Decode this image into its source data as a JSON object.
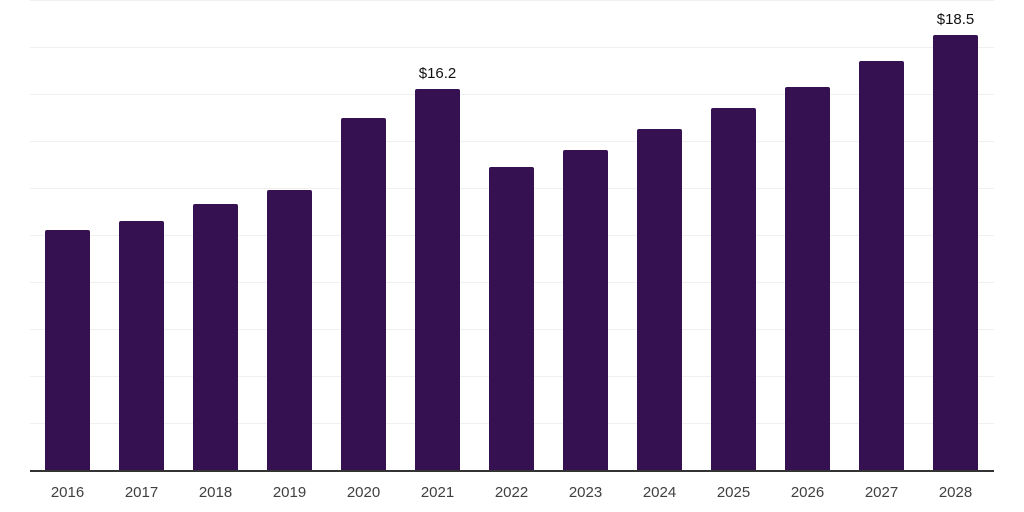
{
  "chart_data": {
    "type": "bar",
    "title": "",
    "xlabel": "",
    "ylabel": "",
    "categories": [
      "2016",
      "2017",
      "2018",
      "2019",
      "2020",
      "2021",
      "2022",
      "2023",
      "2024",
      "2025",
      "2026",
      "2027",
      "2028"
    ],
    "values": [
      10.2,
      10.6,
      11.3,
      11.9,
      15.0,
      16.2,
      12.9,
      13.6,
      14.5,
      15.4,
      16.3,
      17.4,
      18.5
    ],
    "value_prefix": "$",
    "annotations": [
      {
        "category": "2021",
        "label": "$16.2"
      },
      {
        "category": "2028",
        "label": "$18.5"
      }
    ],
    "ylim": [
      0,
      20
    ],
    "gridline_step": 2,
    "grid": true,
    "legend": "none",
    "colors": {
      "bar": "#351151",
      "axis_line": "#333333",
      "gridline": "#f0f0f0",
      "annotation_text": "#111111",
      "tick_text": "#404040"
    }
  }
}
